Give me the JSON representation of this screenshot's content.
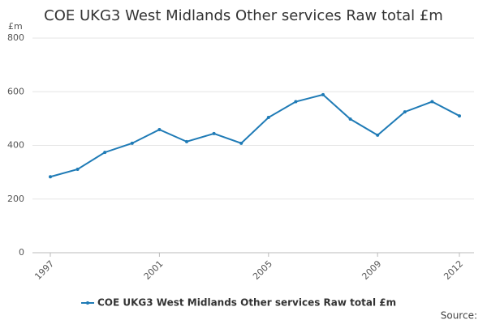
{
  "chart_data": {
    "type": "line",
    "title": "COE UKG3 West Midlands Other services Raw total £m",
    "y_label": "£m",
    "source": "Source:",
    "x": [
      1997,
      1998,
      1999,
      2000,
      2001,
      2002,
      2003,
      2004,
      2005,
      2006,
      2007,
      2008,
      2009,
      2010,
      2011,
      2012
    ],
    "series": [
      {
        "name": "COE UKG3 West Midlands Other services Raw total £m",
        "color": "#1f7bb6",
        "values": [
          283,
          311,
          374,
          408,
          459,
          414,
          444,
          408,
          504,
          563,
          589,
          498,
          438,
          525,
          563,
          510
        ]
      }
    ],
    "xlim": [
      1997,
      2012
    ],
    "xticks": [
      1997,
      2001,
      2005,
      2009,
      2012
    ],
    "ylim": [
      0,
      800
    ],
    "yticks": [
      0,
      200,
      400,
      600,
      800
    ],
    "grid": true
  }
}
